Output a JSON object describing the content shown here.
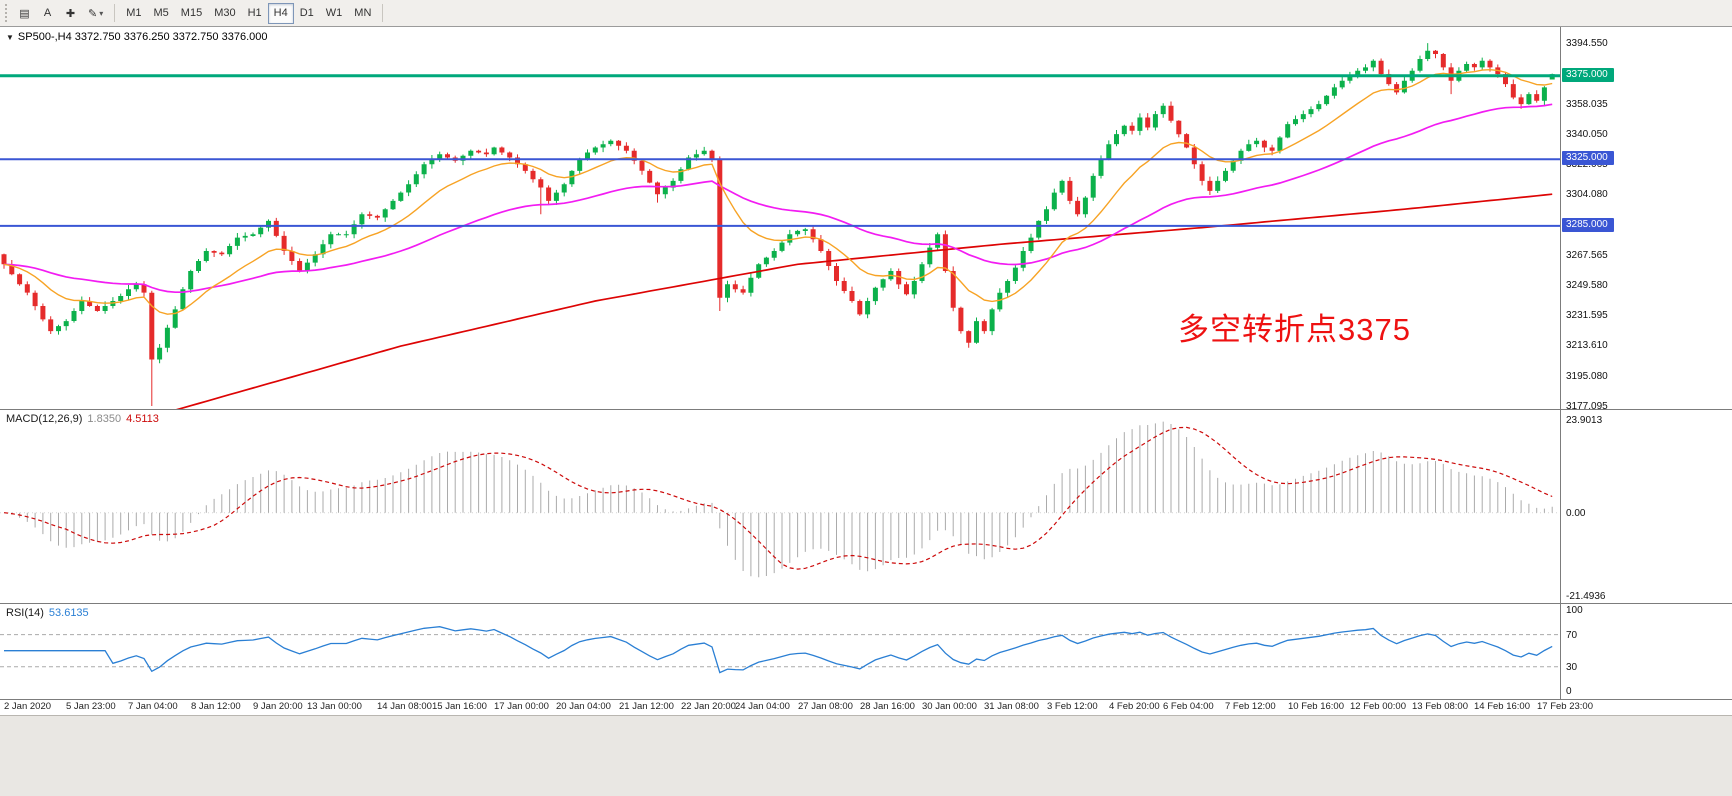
{
  "app": {
    "toolbar": {
      "icons": {
        "menu": "▤",
        "crosshair": "✚",
        "pencil": "✎",
        "caret": "▾",
        "collapse": "▼"
      },
      "text_tool_label": "A",
      "timeframes": [
        "M1",
        "M5",
        "M15",
        "M30",
        "H1",
        "H4",
        "D1",
        "W1",
        "MN"
      ],
      "active_timeframe": "H4"
    }
  },
  "main_header": {
    "symbol_line": "SP500-,H4  3372.750 3376.250 3372.750 3376.000"
  },
  "indicators": {
    "macd": {
      "name": "MACD(12,26,9)",
      "value1": "1.8350",
      "value2": "4.5113",
      "axis": [
        "23.9013",
        "0.00",
        "-21.4936"
      ]
    },
    "rsi": {
      "name": "RSI(14)",
      "value": "53.6135",
      "axis": [
        "100",
        "70",
        "30",
        "0"
      ],
      "levels": [
        70,
        30
      ]
    }
  },
  "annotation": {
    "text": "多空转折点3375",
    "color": "#EE1111"
  },
  "levels": [
    {
      "price": 3375.0,
      "label": "3375.000",
      "color": "#00A87B",
      "width": 3
    },
    {
      "price": 3325.0,
      "label": "3325.000",
      "color": "#3A56D4",
      "width": 2
    },
    {
      "price": 3285.0,
      "label": "3285.000",
      "color": "#3A56D4",
      "width": 2
    }
  ],
  "price_axis_ticks": [
    "3394.550",
    "3358.035",
    "3340.050",
    "3322.065",
    "3304.080",
    "3286.095",
    "3267.565",
    "3249.580",
    "3231.595",
    "3213.610",
    "3195.080",
    "3177.095"
  ],
  "chart_data": {
    "type": "candlestick",
    "symbol": "SP500-",
    "timeframe": "H4",
    "ohlc_display": {
      "open": "3372.750",
      "high": "3376.250",
      "low": "3372.750",
      "close": "3376.000"
    },
    "colors": {
      "up": "#0CB14B",
      "down": "#E52B2B",
      "macd_hist": "#ABABAB",
      "macd_signal": "#CC0A0A",
      "rsi": "#2A7FD4",
      "rsi_level": "#AAAAAA"
    },
    "x_axis_labels": [
      {
        "t": "2 Jan 2020",
        "i": 0
      },
      {
        "t": "5 Jan 23:00",
        "i": 8
      },
      {
        "t": "7 Jan 04:00",
        "i": 16
      },
      {
        "t": "8 Jan 12:00",
        "i": 24
      },
      {
        "t": "9 Jan 20:00",
        "i": 32
      },
      {
        "t": "13 Jan 00:00",
        "i": 39
      },
      {
        "t": "14 Jan 08:00",
        "i": 48
      },
      {
        "t": "15 Jan 16:00",
        "i": 55
      },
      {
        "t": "17 Jan 00:00",
        "i": 63
      },
      {
        "t": "20 Jan 04:00",
        "i": 71
      },
      {
        "t": "21 Jan 12:00",
        "i": 79
      },
      {
        "t": "22 Jan 20:00",
        "i": 87
      },
      {
        "t": "24 Jan 04:00",
        "i": 94
      },
      {
        "t": "27 Jan 08:00",
        "i": 102
      },
      {
        "t": "28 Jan 16:00",
        "i": 110
      },
      {
        "t": "30 Jan 00:00",
        "i": 118
      },
      {
        "t": "31 Jan 08:00",
        "i": 126
      },
      {
        "t": "3 Feb 12:00",
        "i": 134
      },
      {
        "t": "4 Feb 20:00",
        "i": 142
      },
      {
        "t": "6 Feb 04:00",
        "i": 149
      },
      {
        "t": "7 Feb 12:00",
        "i": 157
      },
      {
        "t": "10 Feb 16:00",
        "i": 165
      },
      {
        "t": "12 Feb 00:00",
        "i": 173
      },
      {
        "t": "13 Feb 08:00",
        "i": 181
      },
      {
        "t": "14 Feb 16:00",
        "i": 189
      },
      {
        "t": "17 Feb 23:00",
        "i": 197
      }
    ],
    "candles": {
      "first_open": 3268,
      "closes": [
        3262,
        3256,
        3250,
        3245,
        3237,
        3229,
        3222,
        3225,
        3228,
        3234,
        3240,
        3237,
        3234,
        3237,
        3240,
        3243,
        3247,
        3250,
        3245,
        3205,
        3212,
        3224,
        3235,
        3247,
        3258,
        3264,
        3270,
        3269,
        3268,
        3273,
        3278,
        3279,
        3280,
        3284,
        3288,
        3279,
        3270,
        3264,
        3258,
        3263,
        3268,
        3274,
        3280,
        3280,
        3280,
        3286,
        3292,
        3291,
        3290,
        3295,
        3300,
        3305,
        3310,
        3316,
        3322,
        3325,
        3328,
        3326,
        3324,
        3327,
        3330,
        3329,
        3328,
        3332,
        3329,
        3326,
        3322,
        3318,
        3313,
        3308,
        3300,
        3305,
        3310,
        3318,
        3325,
        3329,
        3332,
        3334,
        3336,
        3333,
        3330,
        3324,
        3318,
        3311,
        3304,
        3308,
        3312,
        3319,
        3326,
        3328,
        3330,
        3325,
        3242,
        3250,
        3247,
        3245,
        3254,
        3262,
        3266,
        3270,
        3275,
        3280,
        3282,
        3283,
        3277,
        3270,
        3261,
        3252,
        3246,
        3240,
        3232,
        3240,
        3248,
        3253,
        3258,
        3250,
        3244,
        3252,
        3262,
        3272,
        3280,
        3258,
        3236,
        3222,
        3215,
        3228,
        3222,
        3235,
        3245,
        3252,
        3260,
        3270,
        3278,
        3288,
        3295,
        3305,
        3312,
        3300,
        3292,
        3302,
        3315,
        3325,
        3334,
        3340,
        3345,
        3342,
        3350,
        3344,
        3352,
        3357,
        3348,
        3340,
        3332,
        3322,
        3312,
        3306,
        3312,
        3318,
        3324,
        3330,
        3334,
        3336,
        3332,
        3330,
        3338,
        3346,
        3349,
        3352,
        3355,
        3358,
        3363,
        3368,
        3372,
        3375,
        3378,
        3380,
        3384,
        3376,
        3370,
        3365,
        3372,
        3378,
        3385,
        3390,
        3388,
        3380,
        3372,
        3378,
        3382,
        3380,
        3384,
        3380,
        3376,
        3370,
        3362,
        3358,
        3364,
        3360,
        3368,
        3376
      ],
      "overrides": {
        "19": {
          "l": 3177.1
        },
        "69": {
          "l": 3292
        },
        "84": {
          "l": 3299
        },
        "92": {
          "l": 3234
        },
        "124": {
          "l": 3212
        },
        "183": {
          "h": 3394.55
        },
        "186": {
          "l": 3364
        },
        "199": {
          "o": 3372.75,
          "h": 3376.25,
          "l": 3372.75,
          "c": 3376.0
        }
      }
    },
    "moving_averages": {
      "fast": {
        "period": 13,
        "color": "#F7A325"
      },
      "mid": {
        "period": 48,
        "color": "#F21CF2"
      },
      "slow": {
        "color": "#DD0404",
        "points": [
          [
            0,
            3150
          ],
          [
            20,
            3172
          ],
          [
            51,
            3213
          ],
          [
            76,
            3240
          ],
          [
            102,
            3262
          ],
          [
            128,
            3274
          ],
          [
            154,
            3284
          ],
          [
            180,
            3295
          ],
          [
            199,
            3304
          ]
        ]
      }
    },
    "macd_params": {
      "fast": 12,
      "slow": 26,
      "signal": 9
    },
    "rsi_params": {
      "period": 14
    },
    "scales": {
      "main": {
        "max": 3404.2,
        "min": 3175.3
      },
      "macd": {
        "max": 26.5,
        "min": -23.3
      },
      "rsi": {
        "max": 108,
        "min": -10
      }
    }
  }
}
